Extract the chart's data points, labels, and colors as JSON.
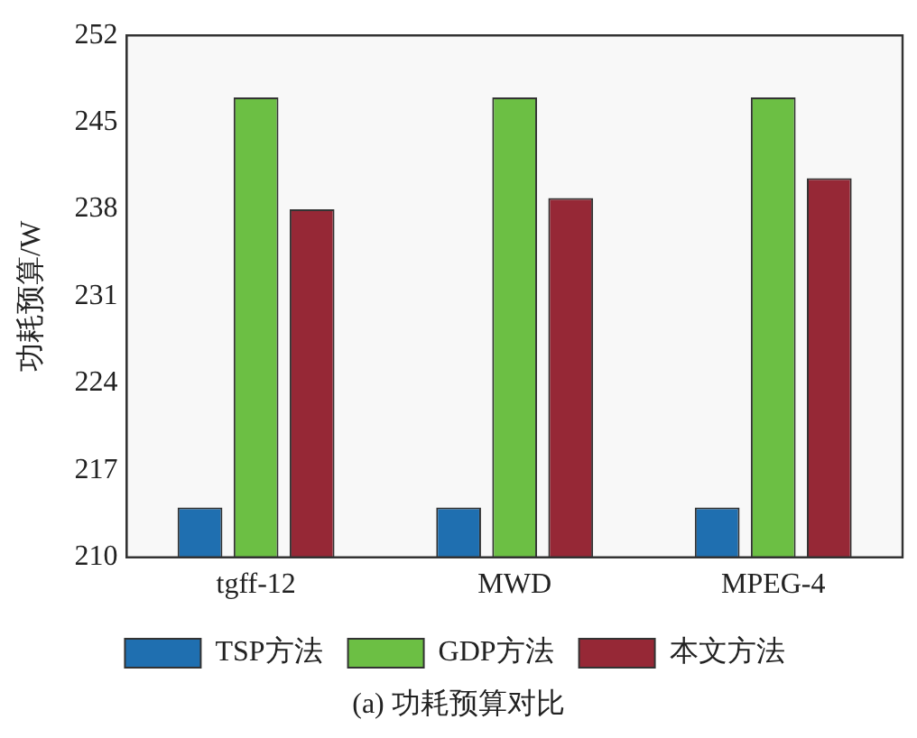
{
  "chart_data": {
    "type": "bar",
    "ylabel": "功耗预算/W",
    "categories": [
      "tgff-12",
      "MWD",
      "MPEG-4"
    ],
    "series": [
      {
        "name": "TSP方法",
        "color": "#1f6fb0",
        "values": [
          214,
          214,
          214
        ]
      },
      {
        "name": "GDP方法",
        "color": "#6cbf44",
        "values": [
          247,
          247,
          247
        ]
      },
      {
        "name": "本文方法",
        "color": "#962836",
        "values": [
          238,
          238.9,
          240.5
        ]
      }
    ],
    "ylim": [
      210,
      252
    ],
    "yticks": [
      210,
      217,
      224,
      231,
      238,
      245,
      252
    ],
    "grid": false,
    "legend": "bottom",
    "annotations": [
      "(a) 功耗预算对比"
    ]
  }
}
